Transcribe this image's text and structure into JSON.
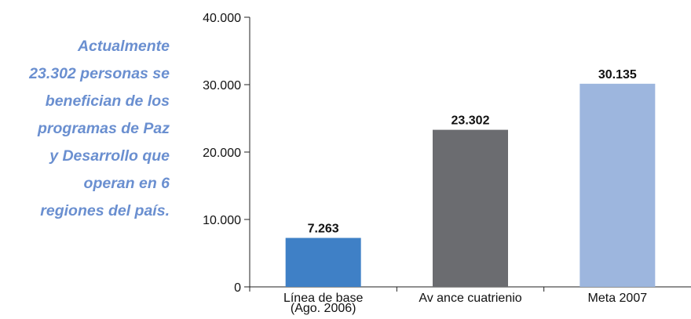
{
  "annotation": {
    "lines": [
      "Actualmente",
      "23.302 personas se",
      "benefician de los",
      "programas de Paz",
      "y Desarrollo que",
      "operan en 6",
      "regiones del país."
    ],
    "color": "#6a8fd0"
  },
  "chart_data": {
    "type": "bar",
    "categories": [
      [
        "Línea de base",
        "(Ago. 2006)"
      ],
      [
        "Av ance cuatrienio"
      ],
      [
        "Meta 2007"
      ]
    ],
    "values": [
      7263,
      23302,
      30135
    ],
    "data_labels": [
      "7.263",
      "23.302",
      "30.135"
    ],
    "colors": [
      "#3f80c6",
      "#6b6c70",
      "#9db6de"
    ],
    "yticks": [
      0,
      10000,
      20000,
      30000,
      40000
    ],
    "ytick_labels": [
      "0",
      "10.000",
      "20.000",
      "30.000",
      "40.000"
    ],
    "ylim": [
      0,
      40000
    ],
    "grid": false,
    "legend": false
  }
}
